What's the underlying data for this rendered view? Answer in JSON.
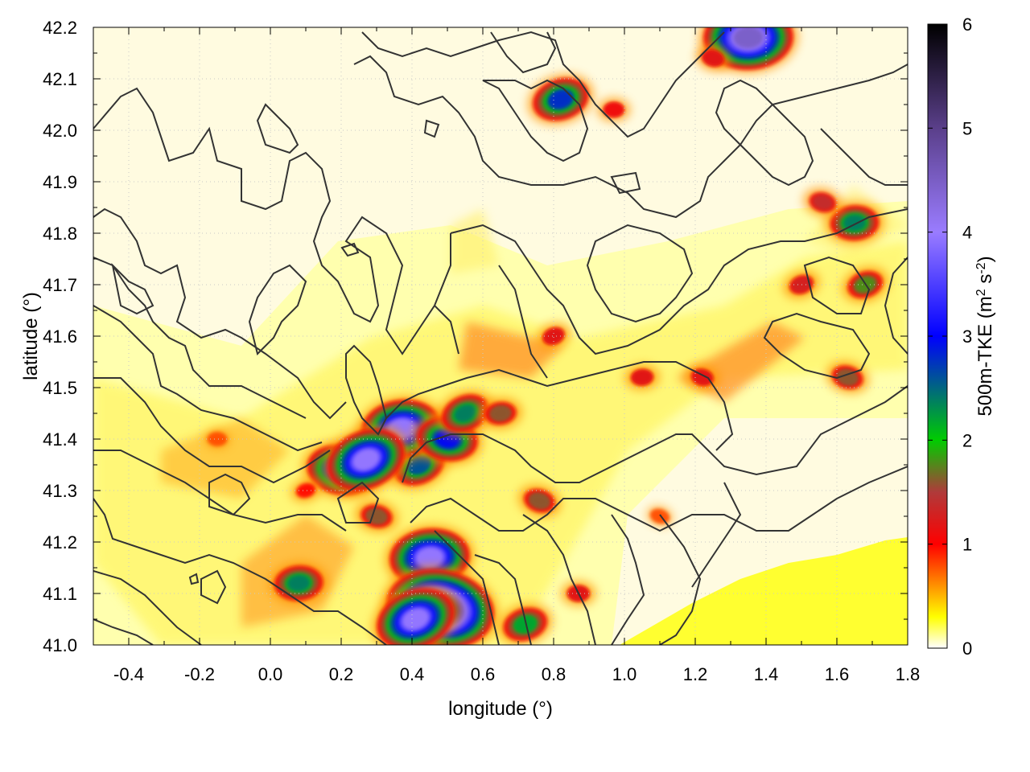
{
  "chart_data": {
    "type": "heatmap",
    "xlabel": "longitude (°)",
    "ylabel": "latitude (°)",
    "colorbar_label_main": "500m-TKE (m",
    "colorbar_label_sup1": "2",
    "colorbar_label_mid": " s",
    "colorbar_label_sup2": "-2",
    "colorbar_label_end": ")",
    "xlim": [
      -0.5,
      1.8
    ],
    "ylim": [
      41.0,
      42.2
    ],
    "clim": [
      0,
      6
    ],
    "x_ticks": [
      -0.4,
      -0.2,
      0.0,
      0.2,
      0.4,
      0.6,
      0.8,
      1.0,
      1.2,
      1.4,
      1.6,
      1.8
    ],
    "x_tick_labels": [
      "-0.4",
      "-0.2",
      "0.0",
      "0.2",
      "0.4",
      "0.6",
      "0.8",
      "1.0",
      "1.2",
      "1.4",
      "1.6",
      "1.8"
    ],
    "y_ticks": [
      41.0,
      41.1,
      41.2,
      41.3,
      41.4,
      41.5,
      41.6,
      41.7,
      41.8,
      41.9,
      42.0,
      42.1,
      42.2
    ],
    "y_tick_labels": [
      "41.0",
      "41.1",
      "41.2",
      "41.3",
      "41.4",
      "41.5",
      "41.6",
      "41.7",
      "41.8",
      "41.9",
      "42.0",
      "42.1",
      "42.2"
    ],
    "colorbar_ticks": [
      0,
      1,
      2,
      3,
      4,
      5,
      6
    ],
    "colorbar_tick_labels": [
      "0",
      "1",
      "2",
      "3",
      "4",
      "5",
      "6"
    ],
    "grid": true,
    "colormap_stops": [
      {
        "value": 0.0,
        "color": "#ffffff"
      },
      {
        "value": 0.3,
        "color": "#ffff00"
      },
      {
        "value": 1.0,
        "color": "#ff0000"
      },
      {
        "value": 1.5,
        "color": "#b03a3a"
      },
      {
        "value": 2.0,
        "color": "#00cc00"
      },
      {
        "value": 3.0,
        "color": "#0000ff"
      },
      {
        "value": 4.0,
        "color": "#9a7cff"
      },
      {
        "value": 5.0,
        "color": "#5a3f8a"
      },
      {
        "value": 6.0,
        "color": "#000000"
      }
    ],
    "tke_hotspots": [
      {
        "lon": 0.42,
        "lat": 41.35,
        "value": 2.6
      },
      {
        "lon": 0.37,
        "lat": 41.42,
        "value": 4.0
      },
      {
        "lon": 0.5,
        "lat": 41.4,
        "value": 3.0
      },
      {
        "lon": 0.55,
        "lat": 41.45,
        "value": 2.4
      },
      {
        "lon": 0.65,
        "lat": 41.45,
        "value": 1.6
      },
      {
        "lon": 0.2,
        "lat": 41.34,
        "value": 3.4
      },
      {
        "lon": 0.27,
        "lat": 41.36,
        "value": 4.0
      },
      {
        "lon": 0.45,
        "lat": 41.17,
        "value": 4.0
      },
      {
        "lon": 0.48,
        "lat": 41.07,
        "value": 5.5
      },
      {
        "lon": 0.41,
        "lat": 41.05,
        "value": 4.0
      },
      {
        "lon": 0.08,
        "lat": 41.12,
        "value": 2.4
      },
      {
        "lon": 0.3,
        "lat": 41.25,
        "value": 1.6
      },
      {
        "lon": 0.8,
        "lat": 41.6,
        "value": 1.2
      },
      {
        "lon": 1.05,
        "lat": 41.52,
        "value": 1.2
      },
      {
        "lon": 1.22,
        "lat": 41.52,
        "value": 1.2
      },
      {
        "lon": 1.5,
        "lat": 41.7,
        "value": 1.3
      },
      {
        "lon": 1.65,
        "lat": 41.82,
        "value": 2.4
      },
      {
        "lon": 1.56,
        "lat": 41.86,
        "value": 1.4
      },
      {
        "lon": 1.68,
        "lat": 41.7,
        "value": 1.8
      },
      {
        "lon": 1.35,
        "lat": 42.18,
        "value": 4.5
      },
      {
        "lon": 1.25,
        "lat": 42.14,
        "value": 1.2
      },
      {
        "lon": 0.82,
        "lat": 42.06,
        "value": 2.8
      },
      {
        "lon": 0.97,
        "lat": 42.04,
        "value": 1.1
      },
      {
        "lon": 1.63,
        "lat": 41.52,
        "value": 1.6
      },
      {
        "lon": 0.72,
        "lat": 41.04,
        "value": 2.2
      },
      {
        "lon": 0.87,
        "lat": 41.1,
        "value": 1.2
      },
      {
        "lon": 0.76,
        "lat": 41.28,
        "value": 1.6
      },
      {
        "lon": 0.1,
        "lat": 41.3,
        "value": 1.0
      },
      {
        "lon": -0.15,
        "lat": 41.4,
        "value": 0.8
      },
      {
        "lon": 1.1,
        "lat": 41.25,
        "value": 0.8
      }
    ]
  }
}
